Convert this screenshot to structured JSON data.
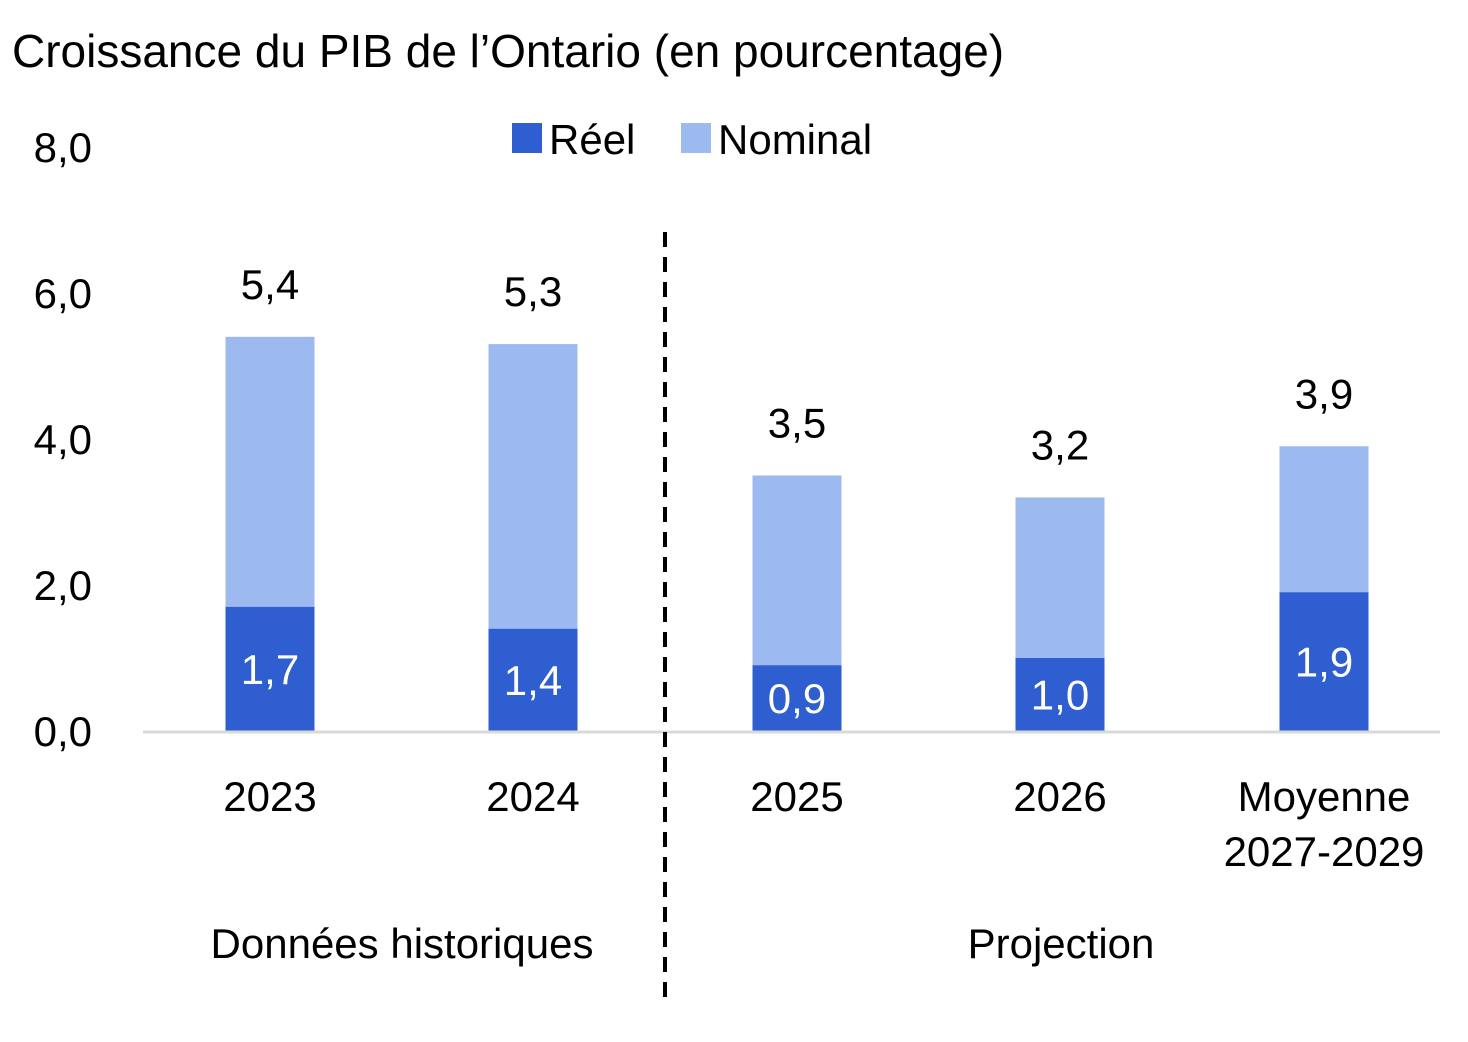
{
  "chart_data": {
    "type": "bar",
    "stacked": true,
    "title": "Croissance du PIB de l’Ontario (en pourcentage)",
    "categories": [
      [
        "2023"
      ],
      [
        "2024"
      ],
      [
        "2025"
      ],
      [
        "2026"
      ],
      [
        "Moyenne",
        "2027-2029"
      ]
    ],
    "series": [
      {
        "name": "Réel",
        "values": [
          1.7,
          1.4,
          0.9,
          1.0,
          1.9
        ],
        "labels": [
          "1,7",
          "1,4",
          "0,9",
          "1,0",
          "1,9"
        ],
        "color": "#2e5ecf"
      },
      {
        "name": "Nominal",
        "values": [
          5.4,
          5.3,
          3.5,
          3.2,
          3.9
        ],
        "labels": [
          "5,4",
          "5,3",
          "3,5",
          "3,2",
          "3,9"
        ],
        "color": "#9dbaf0"
      }
    ],
    "ylim": [
      0,
      8
    ],
    "y_ticks": [
      0,
      2,
      4,
      6,
      8
    ],
    "y_tick_labels": [
      "0,0",
      "2,0",
      "4,0",
      "6,0",
      "8,0"
    ],
    "grid": false,
    "legend_position": "top",
    "groups": [
      {
        "label": "Données historiques",
        "categories": [
          0,
          1
        ]
      },
      {
        "label": "Projection",
        "categories": [
          2,
          3,
          4
        ]
      }
    ],
    "divider": "dashed line between historical data and projection"
  }
}
